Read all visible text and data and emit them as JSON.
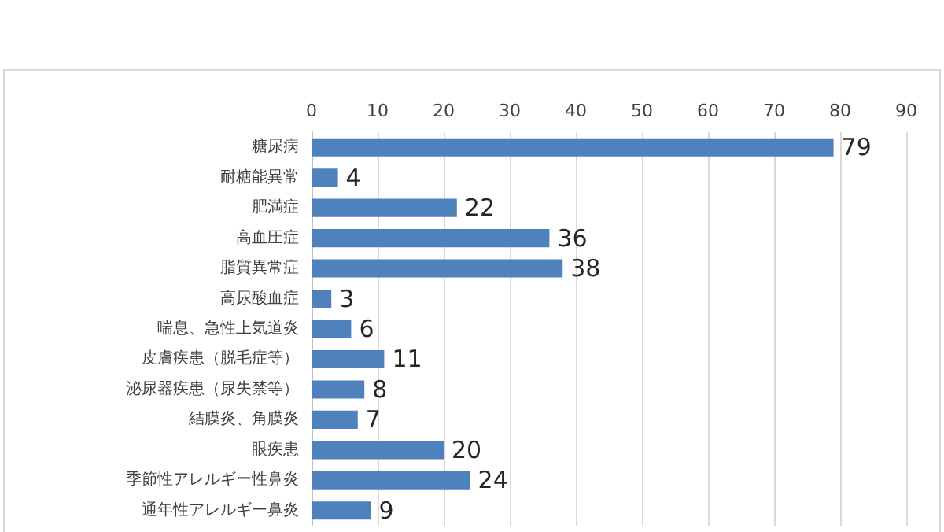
{
  "chart_data": {
    "type": "bar",
    "orientation": "horizontal",
    "categories": [
      "糖尿病",
      "耐糖能異常",
      "肥満症",
      "高血圧症",
      "脂質異常症",
      "高尿酸血症",
      "喘息、急性上気道炎",
      "皮膚疾患（脱毛症等）",
      "泌尿器疾患（尿失禁等）",
      "結膜炎、角膜炎",
      "眼疾患",
      "季節性アレルギー性鼻炎",
      "通年性アレルギー鼻炎"
    ],
    "values": [
      79,
      4,
      22,
      36,
      38,
      3,
      6,
      11,
      8,
      7,
      20,
      24,
      9
    ],
    "color": "#4f81bd",
    "xlim": [
      0,
      90
    ],
    "xticks": [
      0,
      10,
      20,
      30,
      40,
      50,
      60,
      70,
      80,
      90
    ],
    "grid": "x",
    "data_labels": true
  }
}
